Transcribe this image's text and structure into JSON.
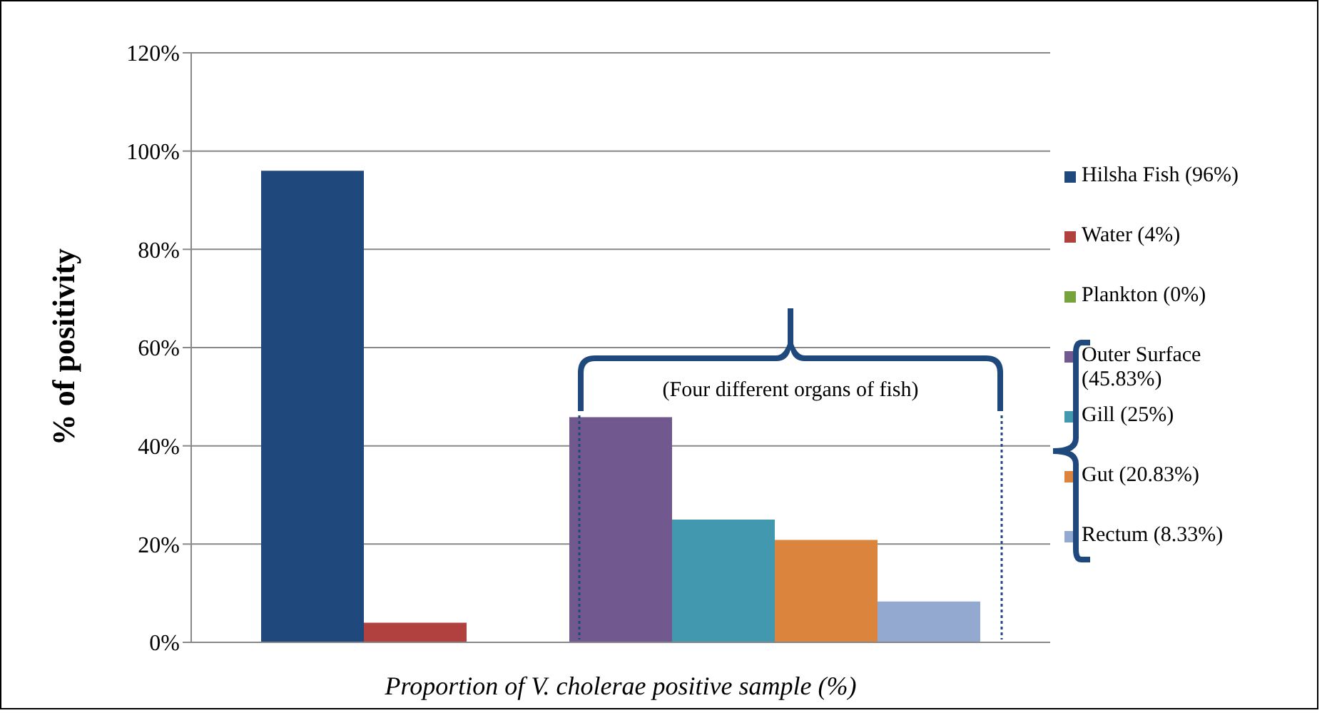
{
  "chart_data": {
    "type": "bar",
    "xlabel": "Proportion of V. cholerae positive sample (%)",
    "ylabel": "% of positivity",
    "categories": [
      null
    ],
    "series": [
      {
        "name": "Hilsha Fish (96%)",
        "color": "#1f497d",
        "values": [
          96
        ]
      },
      {
        "name": "Water (4%)",
        "color": "#b0413e",
        "values": [
          4
        ]
      },
      {
        "name": "Plankton (0%)",
        "color": "#77a33e",
        "values": [
          0
        ]
      },
      {
        "name": "Outer Surface (45.83%)",
        "color": "#71588f",
        "values": [
          45.83
        ]
      },
      {
        "name": "Gill (25%)",
        "color": "#4198af",
        "values": [
          25
        ]
      },
      {
        "name": "Gut (20.83%)",
        "color": "#db843d",
        "values": [
          20.83
        ]
      },
      {
        "name": "Rectum (8.33%)",
        "color": "#93a9cf",
        "values": [
          8.33
        ]
      }
    ],
    "ylim": [
      0,
      120
    ],
    "yticks": [
      {
        "value": 0,
        "label": "0%"
      },
      {
        "value": 20,
        "label": "20%"
      },
      {
        "value": 40,
        "label": "40%"
      },
      {
        "value": 60,
        "label": "60%"
      },
      {
        "value": 80,
        "label": "80%"
      },
      {
        "value": 100,
        "label": "100%"
      },
      {
        "value": 120,
        "label": "120%"
      }
    ],
    "grid": "y",
    "legend": "right",
    "annotations": [
      "(Four different organs of fish)"
    ]
  }
}
